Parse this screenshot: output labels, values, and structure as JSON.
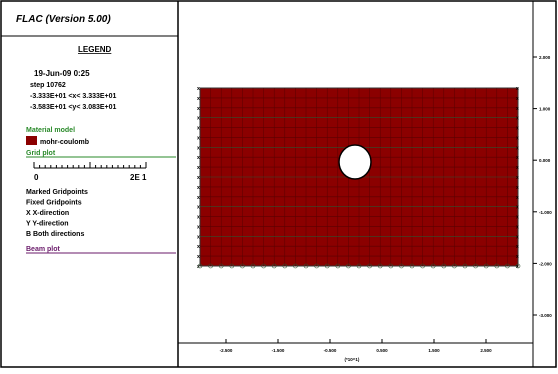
{
  "header": {
    "title": "FLAC (Version 5.00)"
  },
  "legend": {
    "title": "LEGEND",
    "date": "19-Jun-09  0:25",
    "step": "step   10762",
    "xrange": "-3.333E+01 <x<  3.333E+01",
    "yrange": "-3.583E+01 <y<  3.083E+01",
    "material_heading": "Material model",
    "material": "mohr-coulomb",
    "grid_heading": "Grid plot",
    "scale_start": "0",
    "scale_end": "2E 1",
    "items": [
      "Marked Gridpoints",
      "Fixed Gridpoints",
      " X  X-direction",
      " Y  Y-direction",
      " B  Both directions"
    ],
    "beam_heading": "Beam plot"
  },
  "axes": {
    "x_ticks": [
      "-2.500",
      "-1.500",
      "-0.500",
      "0.500",
      "1.500",
      "2.500"
    ],
    "x_unit": "(*10^1)",
    "y_ticks": [
      "2.000",
      "1.000",
      "0.000",
      "-1.000",
      "-2.000",
      "-3.000"
    ]
  }
}
